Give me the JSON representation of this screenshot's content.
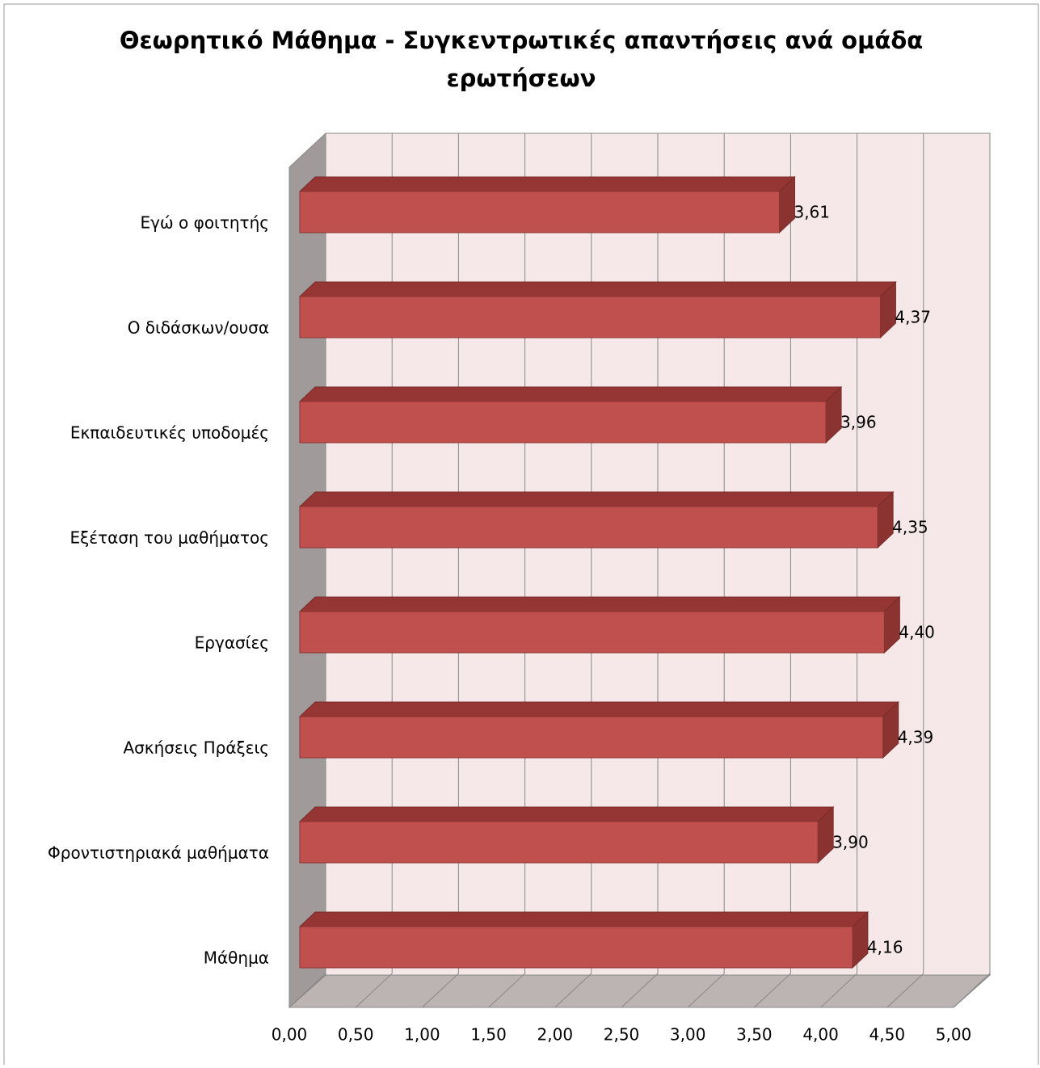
{
  "chart_data": {
    "type": "bar3d-horizontal",
    "title": [
      "Θεωρητικό Μάθημα - Συγκεντρωτικές απαντήσεις ανά ομάδα",
      "ερωτήσεων"
    ],
    "categories": [
      "Εγώ ο φοιτητής",
      "Ο διδάσκων/ουσα",
      "Εκπαιδευτικές υποδομές",
      "Εξέταση του μαθήματος",
      "Εργασίες",
      "Ασκήσεις Πράξεις",
      "Φροντιστηριακά μαθήματα",
      "Μάθημα"
    ],
    "values": [
      3.61,
      4.37,
      3.96,
      4.35,
      4.4,
      4.39,
      3.9,
      4.16
    ],
    "value_labels": [
      "3,61",
      "4,37",
      "3,96",
      "4,35",
      "4,40",
      "4,39",
      "3,90",
      "4,16"
    ],
    "color": "#c0504d",
    "xlim": [
      0,
      5
    ],
    "xticks": [
      {
        "value": 0,
        "label": "0,00"
      },
      {
        "value": 0.5,
        "label": "0,50"
      },
      {
        "value": 1,
        "label": "1,00"
      },
      {
        "value": 1.5,
        "label": "1,50"
      },
      {
        "value": 2,
        "label": "2,00"
      },
      {
        "value": 2.5,
        "label": "2,50"
      },
      {
        "value": 3,
        "label": "3,00"
      },
      {
        "value": 3.5,
        "label": "3,50"
      },
      {
        "value": 4,
        "label": "4,00"
      },
      {
        "value": 4.5,
        "label": "4,50"
      },
      {
        "value": 5,
        "label": "5,00"
      }
    ],
    "grid": true
  }
}
